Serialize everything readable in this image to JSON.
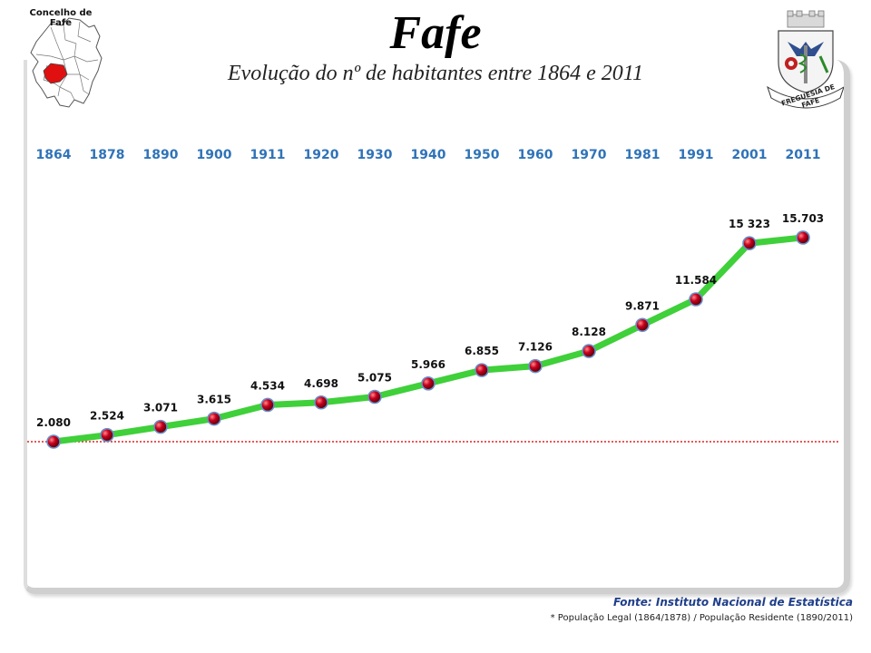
{
  "map_label": "Concelho de Fafe",
  "title": "Fafe",
  "subtitle": "Evolução do nº de habitantes entre 1864 e 2011",
  "emblem_text": "FREGUESIA DE FAFE",
  "source": "Fonte: Instituto Nacional de Estatística",
  "note": "* População Legal (1864/1878) /  População Residente (1890/2011)",
  "colors": {
    "line": "#3fd03a",
    "marker": "#c8001e",
    "year": "#2f73b8",
    "reference": "#e02020",
    "map_highlight": "#e01010"
  },
  "chart_data": {
    "type": "line",
    "x": [
      "1864",
      "1878",
      "1890",
      "1900",
      "1911",
      "1920",
      "1930",
      "1940",
      "1950",
      "1960",
      "1970",
      "1981",
      "1991",
      "2001",
      "2011"
    ],
    "values": [
      2080,
      2524,
      3071,
      3615,
      4534,
      4698,
      5075,
      5966,
      6855,
      7126,
      8128,
      9871,
      11584,
      15323,
      15703
    ],
    "labels": [
      "2.080",
      "2.524",
      "3.071",
      "3.615",
      "4.534",
      "4.698",
      "5.075",
      "5.966",
      "6.855",
      "7.126",
      "8.128",
      "9.871",
      "11.584",
      "15 323",
      "15.703"
    ],
    "reference_line": 2080,
    "ylim": [
      0,
      16000
    ],
    "grid": false,
    "legend": false
  }
}
